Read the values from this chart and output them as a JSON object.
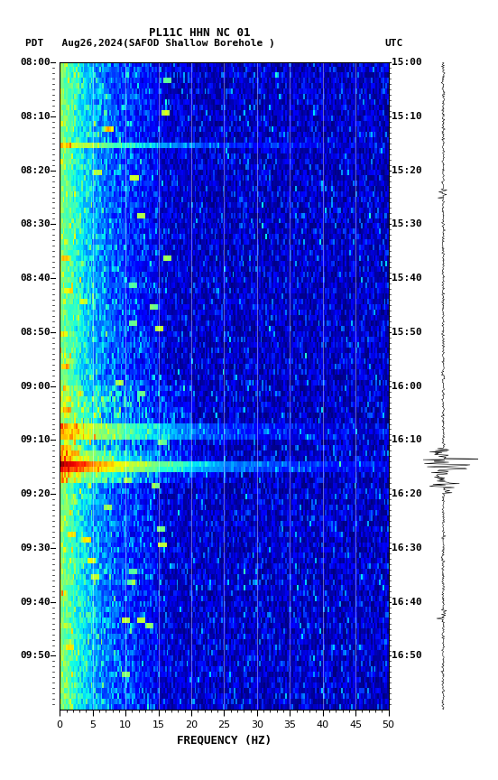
{
  "title_line1": "PL11C HHN NC 01",
  "title_line2_left": "PDT   Aug26,2024",
  "title_line2_center": "(SAFOD Shallow Borehole )",
  "title_line2_right": "UTC",
  "xlabel": "FREQUENCY (HZ)",
  "freq_min": 0,
  "freq_max": 50,
  "time_labels_left": [
    "08:00",
    "08:10",
    "08:20",
    "08:30",
    "08:40",
    "08:50",
    "09:00",
    "09:10",
    "09:20",
    "09:30",
    "09:40",
    "09:50"
  ],
  "time_labels_right": [
    "15:00",
    "15:10",
    "15:20",
    "15:30",
    "15:40",
    "15:50",
    "16:00",
    "16:10",
    "16:20",
    "16:30",
    "16:40",
    "16:50"
  ],
  "n_time_steps": 120,
  "n_freq_steps": 200,
  "background_color": "white",
  "colormap": "jet",
  "vline_color": "white",
  "vline_alpha": 0.5,
  "earthquake_time_idx": 74,
  "earthquake_freq_idx": 60
}
